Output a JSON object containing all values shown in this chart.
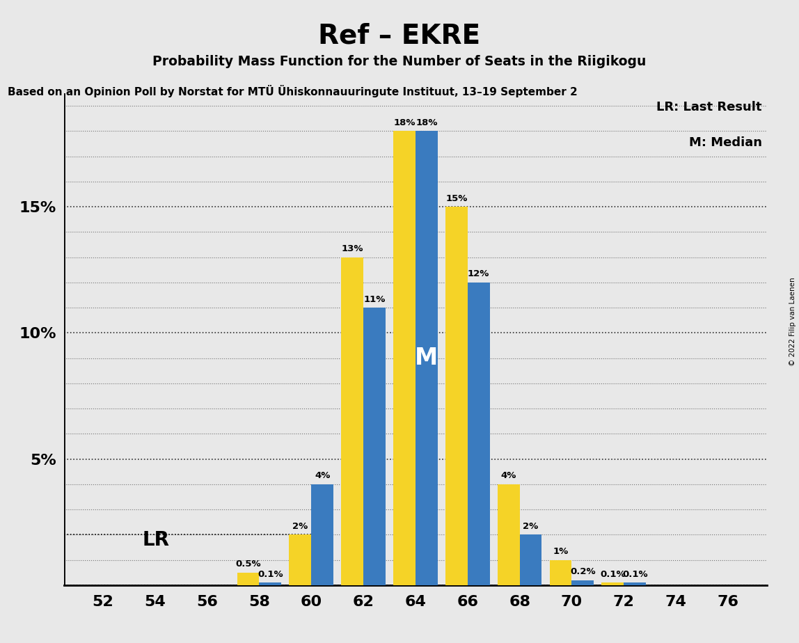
{
  "title": "Ref – EKRE",
  "subtitle": "Probability Mass Function for the Number of Seats in the Riigikogu",
  "subtitle2": "Based on an Opinion Poll by Norstat for MTÜ Ühiskonnauuringute Instituut, 13–19 September 2",
  "copyright": "© 2022 Filip van Laenen",
  "seats": [
    52,
    54,
    56,
    58,
    60,
    62,
    64,
    66,
    68,
    70,
    72,
    74,
    76
  ],
  "blue_values": [
    0,
    0,
    0,
    0.1,
    4,
    11,
    18,
    12,
    2,
    0.2,
    0.1,
    0,
    0
  ],
  "yellow_values": [
    0,
    0,
    0,
    0.5,
    2,
    13,
    18,
    15,
    4,
    1.0,
    0.1,
    0,
    0
  ],
  "ylim": [
    0,
    19.5
  ],
  "ytick_positions": [
    0,
    5,
    10,
    15
  ],
  "ytick_labels": [
    "",
    "5%",
    "10%",
    "15%"
  ],
  "blue_color": "#3a7bbf",
  "yellow_color": "#f5d327",
  "median_seat": 64,
  "lr_seat": 58,
  "background_color": "#e8e8e8",
  "bar_width": 0.85,
  "legend_lr": "LR: Last Result",
  "legend_m": "M: Median"
}
